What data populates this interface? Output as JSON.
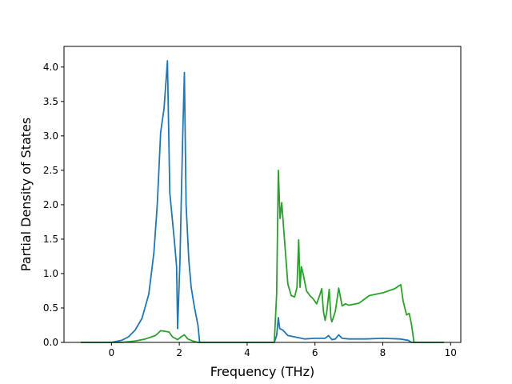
{
  "chart_data": {
    "type": "line",
    "title": "",
    "xlabel": "Frequency (THz)",
    "ylabel": "Partial Density of States",
    "xlim": [
      -1.4,
      10.3
    ],
    "ylim": [
      0.0,
      4.3
    ],
    "xticks": [
      0,
      2,
      4,
      6,
      8,
      10
    ],
    "yticks": [
      0.0,
      0.5,
      1.0,
      1.5,
      2.0,
      2.5,
      3.0,
      3.5,
      4.0
    ],
    "xtick_labels": [
      "0",
      "2",
      "4",
      "6",
      "8",
      "10"
    ],
    "ytick_labels": [
      "0.0",
      "0.5",
      "1.0",
      "1.5",
      "2.0",
      "2.5",
      "3.0",
      "3.5",
      "4.0"
    ],
    "grid": false,
    "legend": "none",
    "series": [
      {
        "color": "#1f77b4",
        "points": [
          [
            -0.9,
            0.0
          ],
          [
            0.0,
            0.0
          ],
          [
            0.3,
            0.03
          ],
          [
            0.5,
            0.08
          ],
          [
            0.7,
            0.18
          ],
          [
            0.9,
            0.35
          ],
          [
            1.1,
            0.7
          ],
          [
            1.25,
            1.3
          ],
          [
            1.35,
            2.0
          ],
          [
            1.45,
            3.05
          ],
          [
            1.55,
            3.4
          ],
          [
            1.65,
            4.09
          ],
          [
            1.72,
            2.17
          ],
          [
            1.85,
            1.5
          ],
          [
            1.92,
            1.1
          ],
          [
            1.95,
            0.2
          ],
          [
            2.02,
            1.2
          ],
          [
            2.1,
            3.0
          ],
          [
            2.15,
            3.92
          ],
          [
            2.2,
            2.0
          ],
          [
            2.28,
            1.2
          ],
          [
            2.35,
            0.8
          ],
          [
            2.45,
            0.5
          ],
          [
            2.55,
            0.25
          ],
          [
            2.6,
            0.0
          ],
          [
            3.5,
            0.0
          ],
          [
            4.8,
            0.0
          ],
          [
            4.87,
            0.1
          ],
          [
            4.92,
            0.36
          ],
          [
            4.96,
            0.2
          ],
          [
            5.05,
            0.18
          ],
          [
            5.2,
            0.1
          ],
          [
            5.5,
            0.07
          ],
          [
            5.7,
            0.05
          ],
          [
            6.0,
            0.06
          ],
          [
            6.3,
            0.06
          ],
          [
            6.4,
            0.1
          ],
          [
            6.5,
            0.04
          ],
          [
            6.6,
            0.05
          ],
          [
            6.7,
            0.11
          ],
          [
            6.8,
            0.06
          ],
          [
            7.0,
            0.05
          ],
          [
            7.5,
            0.05
          ],
          [
            8.0,
            0.06
          ],
          [
            8.5,
            0.05
          ],
          [
            8.75,
            0.03
          ],
          [
            8.85,
            0.0
          ],
          [
            9.8,
            0.0
          ]
        ]
      },
      {
        "color": "#2ca02c",
        "points": [
          [
            -0.9,
            0.0
          ],
          [
            0.3,
            0.0
          ],
          [
            0.7,
            0.02
          ],
          [
            1.0,
            0.05
          ],
          [
            1.3,
            0.1
          ],
          [
            1.45,
            0.17
          ],
          [
            1.6,
            0.16
          ],
          [
            1.7,
            0.15
          ],
          [
            1.8,
            0.08
          ],
          [
            1.95,
            0.04
          ],
          [
            2.05,
            0.08
          ],
          [
            2.15,
            0.11
          ],
          [
            2.25,
            0.05
          ],
          [
            2.4,
            0.02
          ],
          [
            2.55,
            0.0
          ],
          [
            4.8,
            0.0
          ],
          [
            4.87,
            0.7
          ],
          [
            4.92,
            2.5
          ],
          [
            4.97,
            1.8
          ],
          [
            5.02,
            2.03
          ],
          [
            5.1,
            1.5
          ],
          [
            5.2,
            0.85
          ],
          [
            5.3,
            0.68
          ],
          [
            5.4,
            0.66
          ],
          [
            5.47,
            0.8
          ],
          [
            5.52,
            1.49
          ],
          [
            5.56,
            0.8
          ],
          [
            5.6,
            1.1
          ],
          [
            5.65,
            1.0
          ],
          [
            5.75,
            0.75
          ],
          [
            5.85,
            0.68
          ],
          [
            5.95,
            0.63
          ],
          [
            6.05,
            0.56
          ],
          [
            6.15,
            0.7
          ],
          [
            6.2,
            0.78
          ],
          [
            6.25,
            0.45
          ],
          [
            6.3,
            0.32
          ],
          [
            6.35,
            0.45
          ],
          [
            6.42,
            0.77
          ],
          [
            6.47,
            0.35
          ],
          [
            6.5,
            0.3
          ],
          [
            6.6,
            0.45
          ],
          [
            6.7,
            0.79
          ],
          [
            6.8,
            0.53
          ],
          [
            6.9,
            0.56
          ],
          [
            7.0,
            0.54
          ],
          [
            7.3,
            0.57
          ],
          [
            7.6,
            0.68
          ],
          [
            8.0,
            0.72
          ],
          [
            8.35,
            0.78
          ],
          [
            8.53,
            0.84
          ],
          [
            8.6,
            0.6
          ],
          [
            8.7,
            0.4
          ],
          [
            8.78,
            0.42
          ],
          [
            8.85,
            0.25
          ],
          [
            8.92,
            0.0
          ],
          [
            9.8,
            0.0
          ]
        ]
      }
    ]
  }
}
